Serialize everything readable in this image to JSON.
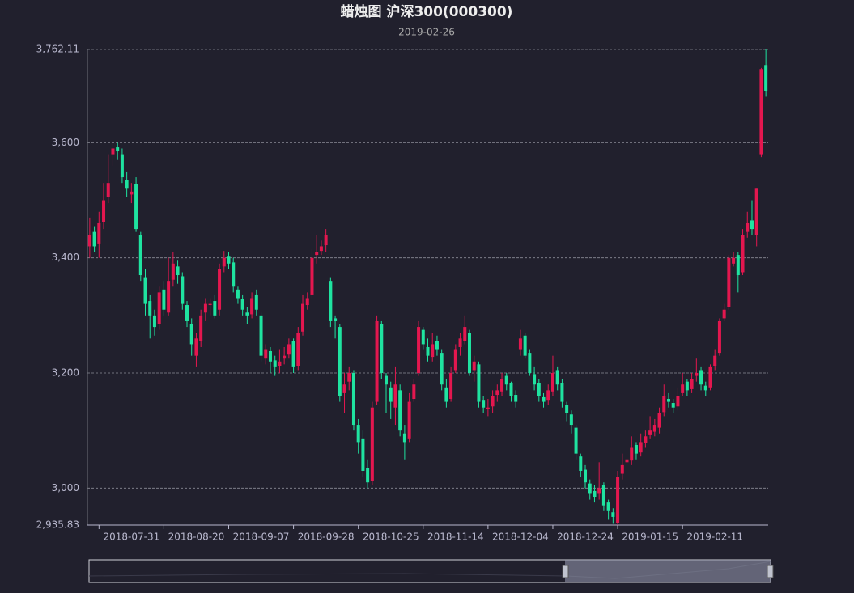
{
  "chart_data": {
    "type": "candlestick",
    "title": "蜡烛图 沪深300(000300)",
    "subtitle": "2019-02-26",
    "up_color": "#e3174f",
    "down_color": "#1fe3a0",
    "grid": true,
    "ylim": [
      2935.83,
      3762.11
    ],
    "yticks": [
      {
        "value": 2935.83,
        "label": "2,935.83"
      },
      {
        "value": 3000,
        "label": "3,000"
      },
      {
        "value": 3200,
        "label": "3,200"
      },
      {
        "value": 3400,
        "label": "3,400"
      },
      {
        "value": 3600,
        "label": "3,600"
      },
      {
        "value": 3762.11,
        "label": "3,762.11"
      }
    ],
    "categories": [
      null,
      null,
      null,
      null,
      null,
      null,
      null,
      null,
      null,
      "2018-07-31",
      null,
      null,
      null,
      null,
      null,
      null,
      null,
      null,
      null,
      null,
      null,
      null,
      null,
      "2018-08-20",
      null,
      null,
      null,
      null,
      null,
      null,
      null,
      null,
      null,
      null,
      null,
      null,
      null,
      "2018-09-07",
      null,
      null,
      null,
      null,
      null,
      null,
      null,
      null,
      null,
      null,
      null,
      null,
      null,
      "2018-09-28",
      null,
      null,
      null,
      null,
      null,
      null,
      null,
      null,
      null,
      null,
      null,
      null,
      null,
      "2018-10-25",
      null,
      null,
      null,
      null,
      null,
      null,
      null,
      null,
      null,
      null,
      null,
      null,
      null,
      "2018-11-14",
      null,
      null,
      null,
      null,
      null,
      null,
      null,
      null,
      null,
      null,
      null,
      null,
      null,
      "2018-12-04",
      null,
      null,
      null,
      null,
      null,
      null,
      null,
      null,
      null,
      null,
      null,
      null,
      null,
      "2018-12-24",
      null,
      null,
      null,
      null,
      null,
      null,
      null,
      null,
      null,
      null,
      null,
      null,
      null,
      "2019-01-15",
      null,
      null,
      null,
      null,
      null,
      null,
      null,
      null,
      null,
      null,
      null,
      null,
      null,
      "2019-02-11",
      null,
      null,
      null,
      null,
      null,
      null,
      null,
      null,
      null,
      null,
      null
    ],
    "series": [
      {
        "values": [
          [
            3420,
            3440,
            3400,
            3470
          ],
          [
            3445,
            3420,
            3410,
            3455
          ],
          [
            3425,
            3460,
            3400,
            3480
          ],
          [
            3462,
            3500,
            3450,
            3530
          ],
          [
            3505,
            3530,
            3495,
            3580
          ],
          [
            3580,
            3590,
            3560,
            3600
          ],
          [
            3592,
            3585,
            3570,
            3600
          ],
          [
            3580,
            3540,
            3530,
            3590
          ],
          [
            3535,
            3520,
            3505,
            3550
          ],
          [
            3510,
            3515,
            3495,
            3530
          ],
          [
            3528,
            3450,
            3445,
            3540
          ],
          [
            3440,
            3370,
            3360,
            3445
          ],
          [
            3365,
            3320,
            3300,
            3380
          ],
          [
            3325,
            3300,
            3260,
            3335
          ],
          [
            3300,
            3280,
            3265,
            3310
          ],
          [
            3285,
            3340,
            3275,
            3350
          ],
          [
            3345,
            3310,
            3300,
            3360
          ],
          [
            3305,
            3360,
            3300,
            3400
          ],
          [
            3362,
            3390,
            3350,
            3410
          ],
          [
            3385,
            3370,
            3355,
            3395
          ],
          [
            3368,
            3320,
            3310,
            3375
          ],
          [
            3318,
            3290,
            3280,
            3325
          ],
          [
            3285,
            3250,
            3230,
            3295
          ],
          [
            3230,
            3260,
            3210,
            3270
          ],
          [
            3255,
            3300,
            3245,
            3310
          ],
          [
            3305,
            3320,
            3290,
            3330
          ],
          [
            3318,
            3320,
            3300,
            3330
          ],
          [
            3325,
            3300,
            3295,
            3335
          ],
          [
            3310,
            3380,
            3300,
            3390
          ],
          [
            3385,
            3400,
            3375,
            3412
          ],
          [
            3402,
            3390,
            3380,
            3410
          ],
          [
            3392,
            3350,
            3340,
            3400
          ],
          [
            3345,
            3330,
            3320,
            3350
          ],
          [
            3328,
            3310,
            3300,
            3335
          ],
          [
            3305,
            3300,
            3285,
            3315
          ],
          [
            3302,
            3330,
            3295,
            3340
          ],
          [
            3335,
            3310,
            3300,
            3345
          ],
          [
            3300,
            3230,
            3220,
            3305
          ],
          [
            3225,
            3240,
            3215,
            3250
          ],
          [
            3238,
            3220,
            3200,
            3245
          ],
          [
            3222,
            3210,
            3195,
            3230
          ],
          [
            3212,
            3220,
            3200,
            3240
          ],
          [
            3225,
            3230,
            3215,
            3245
          ],
          [
            3232,
            3250,
            3225,
            3260
          ],
          [
            3255,
            3210,
            3200,
            3260
          ],
          [
            3212,
            3270,
            3205,
            3280
          ],
          [
            3272,
            3320,
            3265,
            3335
          ],
          [
            3318,
            3330,
            3310,
            3340
          ],
          [
            3335,
            3400,
            3330,
            3415
          ],
          [
            3405,
            3410,
            3390,
            3440
          ],
          [
            3412,
            3420,
            3405,
            3430
          ],
          [
            3422,
            3440,
            3410,
            3450
          ],
          [
            3360,
            3290,
            3280,
            3365
          ],
          [
            3295,
            3290,
            3260,
            3300
          ],
          [
            3280,
            3160,
            3150,
            3285
          ],
          [
            3165,
            3180,
            3130,
            3200
          ],
          [
            3185,
            3200,
            3170,
            3210
          ],
          [
            3200,
            3110,
            3100,
            3205
          ],
          [
            3110,
            3080,
            3060,
            3120
          ],
          [
            3085,
            3030,
            3020,
            3100
          ],
          [
            3035,
            3010,
            3000,
            3050
          ],
          [
            3012,
            3140,
            3005,
            3150
          ],
          [
            3150,
            3290,
            3145,
            3300
          ],
          [
            3285,
            3200,
            3190,
            3290
          ],
          [
            3195,
            3180,
            3130,
            3200
          ],
          [
            3175,
            3150,
            3120,
            3185
          ],
          [
            3140,
            3180,
            3110,
            3210
          ],
          [
            3170,
            3100,
            3090,
            3180
          ],
          [
            3095,
            3080,
            3050,
            3110
          ],
          [
            3085,
            3150,
            3080,
            3165
          ],
          [
            3155,
            3180,
            3150,
            3190
          ],
          [
            3200,
            3280,
            3195,
            3290
          ],
          [
            3275,
            3250,
            3240,
            3280
          ],
          [
            3245,
            3230,
            3220,
            3260
          ],
          [
            3228,
            3250,
            3220,
            3270
          ],
          [
            3255,
            3240,
            3230,
            3265
          ],
          [
            3235,
            3180,
            3170,
            3240
          ],
          [
            3175,
            3150,
            3140,
            3190
          ],
          [
            3155,
            3200,
            3150,
            3210
          ],
          [
            3205,
            3240,
            3200,
            3250
          ],
          [
            3245,
            3260,
            3230,
            3270
          ],
          [
            3255,
            3280,
            3250,
            3300
          ],
          [
            3270,
            3200,
            3195,
            3275
          ],
          [
            3205,
            3220,
            3185,
            3230
          ],
          [
            3215,
            3150,
            3140,
            3220
          ],
          [
            3152,
            3140,
            3130,
            3160
          ],
          [
            3138,
            3140,
            3125,
            3155
          ],
          [
            3142,
            3160,
            3130,
            3170
          ],
          [
            3162,
            3170,
            3150,
            3180
          ],
          [
            3168,
            3190,
            3160,
            3200
          ],
          [
            3195,
            3180,
            3170,
            3200
          ],
          [
            3182,
            3160,
            3150,
            3185
          ],
          [
            3162,
            3150,
            3140,
            3170
          ],
          [
            3240,
            3260,
            3230,
            3275
          ],
          [
            3265,
            3230,
            3225,
            3270
          ],
          [
            3235,
            3200,
            3195,
            3240
          ],
          [
            3198,
            3180,
            3170,
            3210
          ],
          [
            3182,
            3160,
            3150,
            3190
          ],
          [
            3158,
            3150,
            3140,
            3165
          ],
          [
            3152,
            3170,
            3145,
            3180
          ],
          [
            3168,
            3200,
            3160,
            3230
          ],
          [
            3205,
            3180,
            3170,
            3210
          ],
          [
            3182,
            3150,
            3140,
            3190
          ],
          [
            3145,
            3130,
            3115,
            3150
          ],
          [
            3128,
            3110,
            3095,
            3135
          ],
          [
            3105,
            3060,
            3050,
            3110
          ],
          [
            3055,
            3030,
            3020,
            3060
          ],
          [
            3032,
            3010,
            3000,
            3040
          ],
          [
            3008,
            2990,
            2980,
            3015
          ],
          [
            2995,
            2985,
            2975,
            3005
          ],
          [
            2990,
            3000,
            2980,
            3045
          ],
          [
            3005,
            2970,
            2960,
            3010
          ],
          [
            2975,
            2960,
            2945,
            2980
          ],
          [
            2958,
            2950,
            2938,
            2965
          ],
          [
            2940,
            3020,
            2936,
            3030
          ],
          [
            3025,
            3040,
            3015,
            3060
          ],
          [
            3045,
            3050,
            3035,
            3060
          ],
          [
            3048,
            3070,
            3040,
            3090
          ],
          [
            3075,
            3060,
            3050,
            3080
          ],
          [
            3062,
            3080,
            3055,
            3095
          ],
          [
            3078,
            3090,
            3070,
            3100
          ],
          [
            3092,
            3100,
            3085,
            3125
          ],
          [
            3098,
            3110,
            3090,
            3120
          ],
          [
            3105,
            3130,
            3095,
            3140
          ],
          [
            3132,
            3160,
            3125,
            3180
          ],
          [
            3155,
            3150,
            3140,
            3165
          ],
          [
            3148,
            3140,
            3130,
            3155
          ],
          [
            3142,
            3160,
            3135,
            3175
          ],
          [
            3165,
            3180,
            3160,
            3200
          ],
          [
            3185,
            3170,
            3160,
            3190
          ],
          [
            3172,
            3190,
            3165,
            3200
          ],
          [
            3195,
            3200,
            3185,
            3225
          ],
          [
            3205,
            3180,
            3170,
            3210
          ],
          [
            3178,
            3170,
            3160,
            3185
          ],
          [
            3175,
            3210,
            3170,
            3215
          ],
          [
            3212,
            3230,
            3205,
            3240
          ],
          [
            3235,
            3290,
            3230,
            3295
          ],
          [
            3295,
            3310,
            3290,
            3320
          ],
          [
            3315,
            3400,
            3310,
            3405
          ],
          [
            3390,
            3400,
            3385,
            3410
          ],
          [
            3405,
            3370,
            3340,
            3410
          ],
          [
            3375,
            3440,
            3370,
            3450
          ],
          [
            3445,
            3460,
            3435,
            3480
          ],
          [
            3465,
            3450,
            3440,
            3500
          ],
          [
            3440,
            3520,
            3420,
            3520
          ],
          [
            3580,
            3728,
            3575,
            3730
          ],
          [
            3735,
            3690,
            3680,
            3762.11
          ]
        ]
      }
    ]
  }
}
